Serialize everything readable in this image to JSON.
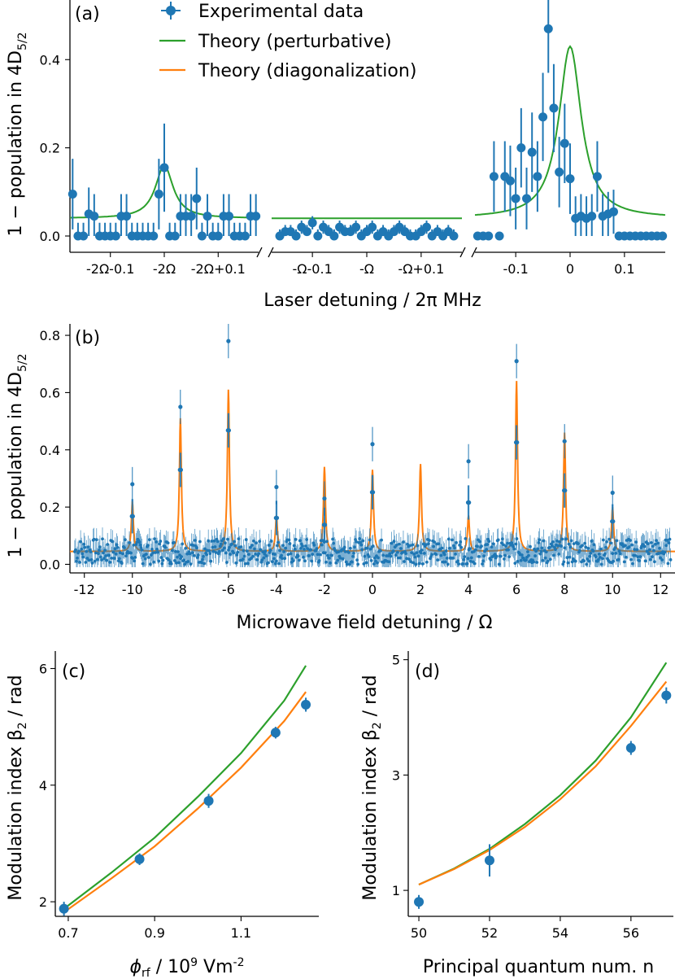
{
  "colors": {
    "data": "#1f77b4",
    "perturbative": "#2ca02c",
    "diagonalization": "#ff7f0e"
  },
  "chart_data": [
    {
      "panel": "(a)",
      "type": "scatter",
      "xlabel": "Laser detuning / 2π MHz",
      "ylabel_main": "1 − population in 4D",
      "ylabel_sub": "5/2",
      "ylim": [
        0,
        0.55
      ],
      "yticks": [
        "0.0",
        "0.2",
        "0.4"
      ],
      "broken_x_axis": true,
      "legend": {
        "placement": "top",
        "entries": [
          "Experimental data",
          "Theory (perturbative)",
          "Theory (diagonalization)"
        ]
      },
      "segments": [
        {
          "xlim": [
            -0.175,
            0.175
          ],
          "ticks": [
            {
              "x": -0.1,
              "label": "-2Ω-0.1"
            },
            {
              "x": 0,
              "label": "-2Ω"
            },
            {
              "x": 0.1,
              "label": "-2Ω+0.1"
            }
          ],
          "data": {
            "x": [
              -0.17,
              -0.16,
              -0.15,
              -0.14,
              -0.13,
              -0.12,
              -0.11,
              -0.1,
              -0.09,
              -0.08,
              -0.07,
              -0.06,
              -0.05,
              -0.04,
              -0.03,
              -0.02,
              -0.01,
              0.0,
              0.01,
              0.02,
              0.03,
              0.04,
              0.05,
              0.06,
              0.07,
              0.08,
              0.09,
              0.1,
              0.11,
              0.12,
              0.13,
              0.14,
              0.15,
              0.16,
              0.17
            ],
            "y": [
              0.095,
              0.0,
              0.0,
              0.05,
              0.045,
              0.0,
              0.0,
              0.0,
              0.0,
              0.045,
              0.045,
              0.0,
              0.0,
              0.0,
              0.0,
              0.0,
              0.095,
              0.155,
              0.0,
              0.0,
              0.045,
              0.045,
              0.045,
              0.085,
              0.0,
              0.045,
              0.0,
              0.0,
              0.045,
              0.045,
              0.0,
              0.0,
              0.0,
              0.045,
              0.045
            ],
            "err": [
              0.08,
              0.03,
              0.03,
              0.06,
              0.05,
              0.03,
              0.03,
              0.03,
              0.03,
              0.05,
              0.05,
              0.03,
              0.03,
              0.03,
              0.03,
              0.03,
              0.08,
              0.1,
              0.03,
              0.03,
              0.05,
              0.05,
              0.05,
              0.07,
              0.03,
              0.05,
              0.03,
              0.03,
              0.05,
              0.05,
              0.03,
              0.03,
              0.03,
              0.05,
              0.05
            ]
          },
          "perturbative_peak": {
            "center": 0.0,
            "height": 0.12,
            "width": 0.02,
            "baseline": 0.04
          }
        },
        {
          "xlim": [
            -0.175,
            0.175
          ],
          "ticks": [
            {
              "x": -0.1,
              "label": "-Ω-0.1"
            },
            {
              "x": 0,
              "label": "-Ω"
            },
            {
              "x": 0.1,
              "label": "-Ω+0.1"
            }
          ],
          "data": {
            "x": [
              -0.16,
              -0.15,
              -0.14,
              -0.13,
              -0.12,
              -0.11,
              -0.1,
              -0.09,
              -0.08,
              -0.07,
              -0.06,
              -0.05,
              -0.04,
              -0.03,
              -0.02,
              -0.01,
              0.0,
              0.01,
              0.02,
              0.03,
              0.04,
              0.05,
              0.06,
              0.07,
              0.08,
              0.09,
              0.1,
              0.11,
              0.12,
              0.13,
              0.14,
              0.15,
              0.16
            ],
            "y": [
              0.0,
              0.01,
              0.01,
              0.0,
              0.02,
              0.01,
              0.03,
              0.0,
              0.02,
              0.01,
              0.0,
              0.02,
              0.01,
              0.01,
              0.02,
              0.0,
              0.01,
              0.02,
              0.0,
              0.01,
              0.0,
              0.01,
              0.02,
              0.01,
              0.0,
              0.0,
              0.01,
              0.02,
              0.0,
              0.01,
              0.0,
              0.01,
              0.0
            ],
            "err": [
              0.015,
              0.015,
              0.015,
              0.015,
              0.015,
              0.015,
              0.015,
              0.015,
              0.015,
              0.015,
              0.015,
              0.015,
              0.015,
              0.015,
              0.015,
              0.015,
              0.015,
              0.015,
              0.015,
              0.015,
              0.015,
              0.015,
              0.015,
              0.015,
              0.015,
              0.015,
              0.015,
              0.015,
              0.015,
              0.015,
              0.015,
              0.015,
              0.015
            ]
          },
          "perturbative_peak": {
            "center": 0.0,
            "height": 0.0,
            "width": 0.02,
            "baseline": 0.04
          }
        },
        {
          "xlim": [
            -0.175,
            0.175
          ],
          "ticks": [
            {
              "x": -0.1,
              "label": "-0.1"
            },
            {
              "x": 0,
              "label": "0"
            },
            {
              "x": 0.1,
              "label": "0.1"
            }
          ],
          "data": {
            "x": [
              -0.17,
              -0.16,
              -0.15,
              -0.14,
              -0.13,
              -0.12,
              -0.11,
              -0.1,
              -0.09,
              -0.08,
              -0.07,
              -0.06,
              -0.05,
              -0.04,
              -0.03,
              -0.02,
              -0.01,
              0.0,
              0.01,
              0.02,
              0.03,
              0.04,
              0.05,
              0.06,
              0.07,
              0.08,
              0.09,
              0.1,
              0.11,
              0.12,
              0.13,
              0.14,
              0.15,
              0.16,
              0.17
            ],
            "y": [
              0.0,
              0.0,
              0.0,
              0.135,
              0.0,
              0.135,
              0.125,
              0.085,
              0.2,
              0.085,
              0.19,
              0.135,
              0.27,
              0.47,
              0.29,
              0.145,
              0.21,
              0.13,
              0.04,
              0.045,
              0.04,
              0.045,
              0.135,
              0.045,
              0.05,
              0.055,
              0.0,
              0.0,
              0.0,
              0.0,
              0.0,
              0.0,
              0.0,
              0.0,
              0.0
            ],
            "err": [
              0.0,
              0.0,
              0.0,
              0.08,
              0.0,
              0.08,
              0.08,
              0.07,
              0.09,
              0.07,
              0.09,
              0.08,
              0.1,
              0.1,
              0.1,
              0.08,
              0.09,
              0.08,
              0.05,
              0.05,
              0.05,
              0.05,
              0.08,
              0.05,
              0.05,
              0.05,
              0.0,
              0.0,
              0.0,
              0.0,
              0.0,
              0.0,
              0.0,
              0.0,
              0.0
            ]
          },
          "perturbative_peak": {
            "center": 0.0,
            "height": 0.39,
            "width": 0.025,
            "baseline": 0.04
          }
        }
      ]
    },
    {
      "panel": "(b)",
      "type": "scatter",
      "xlabel": "Microwave field detuning / Ω",
      "ylabel_main": "1 − population in 4D",
      "ylabel_sub": "5/2",
      "xlim": [
        -12.6,
        12.6
      ],
      "ylim": [
        -0.03,
        0.84
      ],
      "xticks": [
        -12,
        -10,
        -8,
        -6,
        -4,
        -2,
        0,
        2,
        4,
        6,
        8,
        10,
        12
      ],
      "yticks": [
        0.0,
        0.2,
        0.4,
        0.6,
        0.8
      ],
      "data_peaks": [
        {
          "x": -10,
          "y": 0.28
        },
        {
          "x": -8,
          "y": 0.55
        },
        {
          "x": -6,
          "y": 0.78
        },
        {
          "x": -4,
          "y": 0.27
        },
        {
          "x": -2,
          "y": 0.23
        },
        {
          "x": 0,
          "y": 0.42
        },
        {
          "x": 4,
          "y": 0.36
        },
        {
          "x": 6,
          "y": 0.71
        },
        {
          "x": 8,
          "y": 0.43
        },
        {
          "x": 10,
          "y": 0.25
        }
      ],
      "theory_peaks": [
        {
          "x": -10,
          "y": 0.22
        },
        {
          "x": -8,
          "y": 0.51
        },
        {
          "x": -6,
          "y": 0.61
        },
        {
          "x": -4,
          "y": 0.17
        },
        {
          "x": -2,
          "y": 0.34
        },
        {
          "x": 0,
          "y": 0.33
        },
        {
          "x": 2,
          "y": 0.35
        },
        {
          "x": 4,
          "y": 0.17
        },
        {
          "x": 6,
          "y": 0.64
        },
        {
          "x": 8,
          "y": 0.46
        },
        {
          "x": 10,
          "y": 0.2
        }
      ],
      "baseline": 0.045
    },
    {
      "panel": "(c)",
      "type": "line",
      "xlabel_main": "ϕ",
      "xlabel_sub": "rf",
      "xlabel_rest": " / 10",
      "xlabel_exp": "9",
      "xlabel_unit": " Vm",
      "xlabel_unit_exp": "-2",
      "ylabel_main": "Modulation index β",
      "ylabel_sub": "2",
      "ylabel_rest": " / rad",
      "xlim": [
        0.67,
        1.28
      ],
      "ylim": [
        1.75,
        6.3
      ],
      "xticks": [
        "0.7",
        "0.9",
        "1.1"
      ],
      "yticks": [
        "2",
        "4",
        "6"
      ],
      "data": {
        "x": [
          0.69,
          0.865,
          1.025,
          1.18,
          1.25
        ],
        "y": [
          1.88,
          2.73,
          3.73,
          4.9,
          5.38
        ],
        "err": [
          0.12,
          0.1,
          0.12,
          0.1,
          0.12
        ]
      },
      "perturbative": {
        "x": [
          0.69,
          0.8,
          0.9,
          1.0,
          1.1,
          1.2,
          1.25
        ],
        "y": [
          1.88,
          2.5,
          3.1,
          3.8,
          4.55,
          5.45,
          6.05
        ]
      },
      "diagonalization": {
        "x": [
          0.69,
          0.8,
          0.9,
          1.0,
          1.1,
          1.2,
          1.25
        ],
        "y": [
          1.82,
          2.4,
          2.95,
          3.6,
          4.3,
          5.1,
          5.6
        ]
      }
    },
    {
      "panel": "(d)",
      "type": "line",
      "xlabel": "Principal quantum num. n",
      "ylabel_main": "Modulation index β",
      "ylabel_sub": "2",
      "ylabel_rest": " / rad",
      "xlim": [
        49.7,
        57.2
      ],
      "ylim": [
        0.55,
        5.15
      ],
      "xticks": [
        50,
        52,
        54,
        56
      ],
      "yticks": [
        1,
        3,
        5
      ],
      "data": {
        "x": [
          50,
          52,
          56,
          57
        ],
        "y": [
          0.8,
          1.52,
          3.47,
          4.38
        ],
        "err": [
          0.12,
          0.28,
          0.12,
          0.14
        ]
      },
      "perturbative": {
        "x": [
          50,
          51,
          52,
          53,
          54,
          55,
          56,
          57
        ],
        "y": [
          1.1,
          1.38,
          1.72,
          2.15,
          2.65,
          3.25,
          4.0,
          4.95
        ]
      },
      "diagonalization": {
        "x": [
          50,
          51,
          52,
          53,
          54,
          55,
          56,
          57
        ],
        "y": [
          1.1,
          1.37,
          1.7,
          2.1,
          2.58,
          3.15,
          3.85,
          4.62
        ]
      }
    }
  ]
}
